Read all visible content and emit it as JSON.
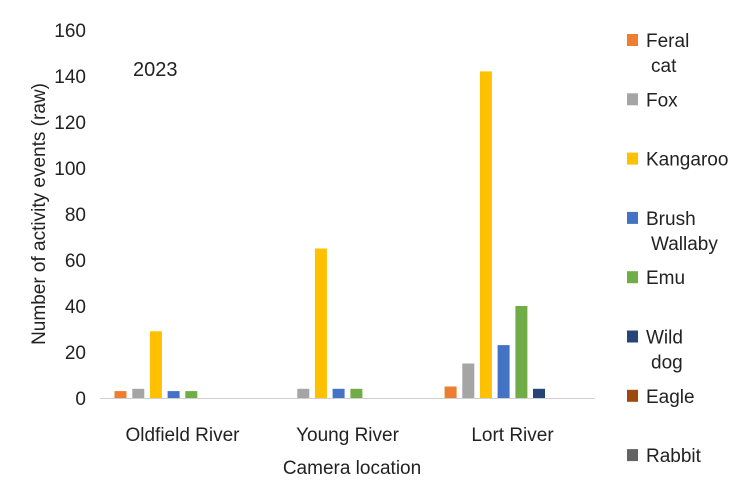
{
  "chart_data": {
    "type": "bar",
    "annotation": "2023",
    "xlabel": "Camera location",
    "ylabel": "Number of activity events (raw)",
    "ylim": [
      0,
      160
    ],
    "yticks": [
      "0",
      "20",
      "40",
      "60",
      "80",
      "100",
      "120",
      "140",
      "160"
    ],
    "categories": [
      "Oldfield River",
      "Young River",
      "Lort River"
    ],
    "legend_position": "right",
    "grid": false,
    "series": [
      {
        "name": "Feral cat",
        "color": "#ED7D31",
        "values": [
          3,
          0,
          5
        ]
      },
      {
        "name": "Fox",
        "color": "#A5A5A5",
        "values": [
          4,
          4,
          15
        ]
      },
      {
        "name": "Kangaroo",
        "color": "#FFC000",
        "values": [
          29,
          65,
          142
        ]
      },
      {
        "name": "Brush Wallaby",
        "color": "#4472C4",
        "values": [
          3,
          4,
          23
        ]
      },
      {
        "name": "Emu",
        "color": "#70AD47",
        "values": [
          3,
          4,
          40
        ]
      },
      {
        "name": "Wild dog",
        "color": "#264478",
        "values": [
          0,
          0,
          4
        ]
      },
      {
        "name": "Eagle",
        "color": "#9E480E",
        "values": [
          0,
          0,
          0
        ]
      },
      {
        "name": "Rabbit",
        "color": "#636363",
        "values": [
          0,
          0,
          0
        ]
      }
    ]
  }
}
